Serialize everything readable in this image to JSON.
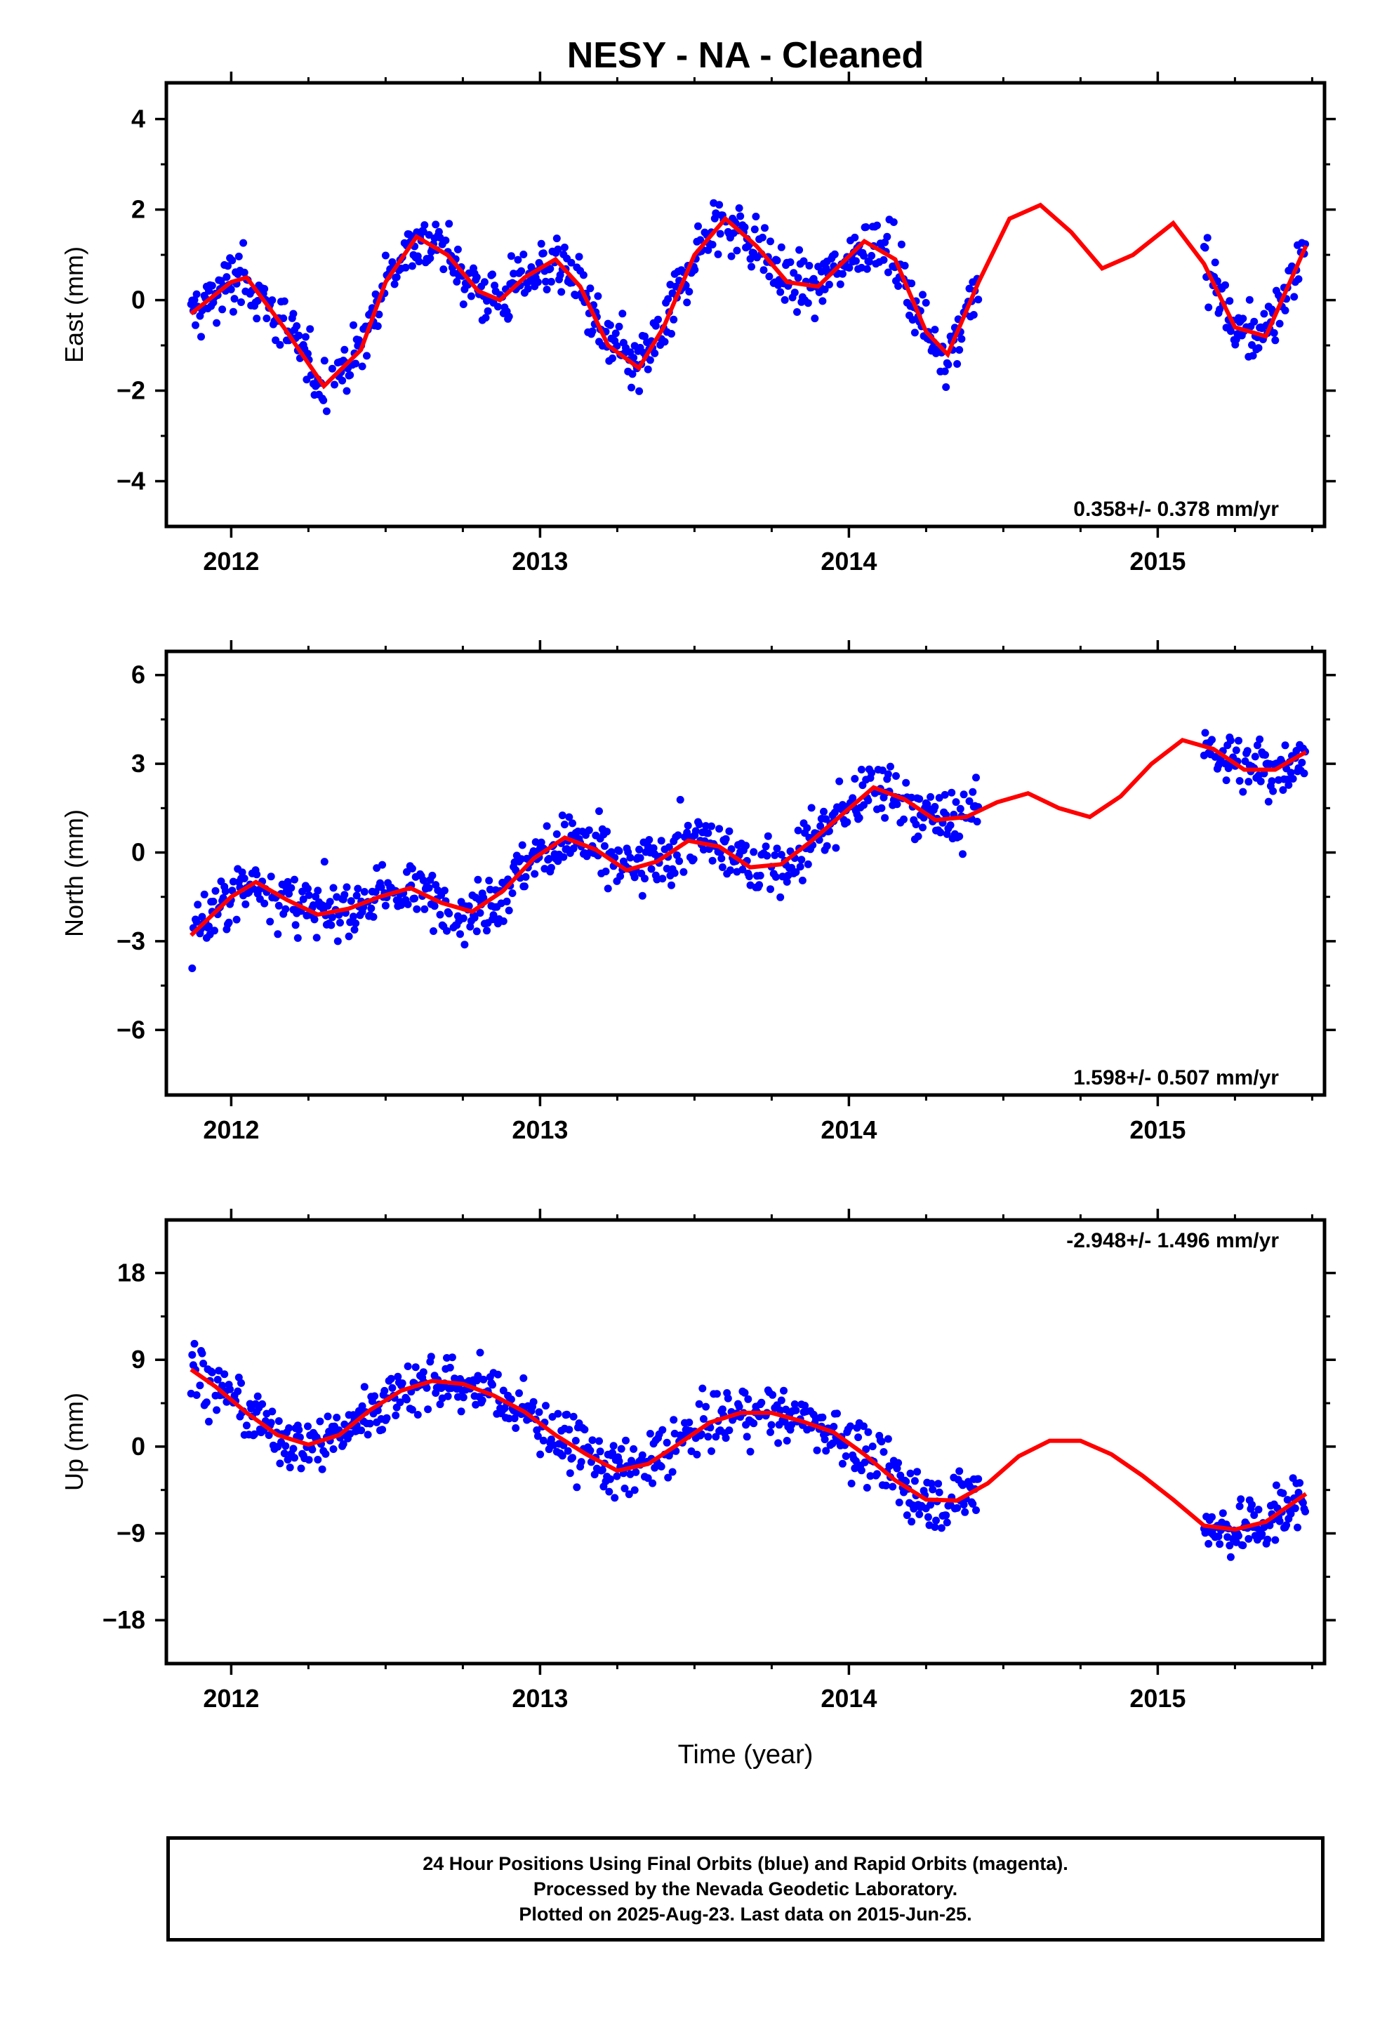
{
  "title": "NESY  - NA - Cleaned",
  "xlabel": "Time (year)",
  "x_tick_labels": [
    "2012",
    "2013",
    "2014",
    "2015"
  ],
  "colors": {
    "final_orbits": "#0000ff",
    "rapid_orbits": "#ff00ff",
    "model_fit": "#ff0000",
    "frame": "#000000"
  },
  "chart_data": [
    {
      "type": "scatter",
      "name": "east",
      "ylabel": "East (mm)",
      "xlim": [
        2011.79,
        2015.54
      ],
      "ylim": [
        -5.0,
        4.8
      ],
      "y_ticks": [
        -4,
        -2,
        0,
        2,
        4
      ],
      "rate_label": "0.358+/- 0.378 mm/yr",
      "segments": [
        [
          2011.87,
          2014.42
        ],
        [
          2015.15,
          2015.48
        ]
      ],
      "fit": {
        "x": [
          2011.87,
          2012.0,
          2012.05,
          2012.17,
          2012.3,
          2012.42,
          2012.5,
          2012.6,
          2012.7,
          2012.8,
          2012.87,
          2012.95,
          2013.05,
          2013.13,
          2013.22,
          2013.32,
          2013.4,
          2013.5,
          2013.6,
          2013.7,
          2013.8,
          2013.9,
          2014.05,
          2014.15,
          2014.25,
          2014.32,
          2014.42,
          2014.52,
          2014.62,
          2014.72,
          2014.82,
          2014.92,
          2015.05,
          2015.15,
          2015.25,
          2015.35,
          2015.48
        ],
        "y": [
          -0.3,
          0.4,
          0.5,
          -0.6,
          -1.9,
          -1.1,
          0.4,
          1.4,
          1.0,
          0.2,
          0.0,
          0.5,
          0.9,
          0.3,
          -1.0,
          -1.5,
          -0.6,
          1.0,
          1.8,
          1.2,
          0.4,
          0.3,
          1.3,
          0.9,
          -0.7,
          -1.2,
          0.4,
          1.8,
          2.1,
          1.5,
          0.7,
          1.0,
          1.7,
          0.8,
          -0.6,
          -0.8,
          1.2
        ]
      }
    },
    {
      "type": "scatter",
      "name": "north",
      "ylabel": "North (mm)",
      "xlim": [
        2011.79,
        2015.54
      ],
      "ylim": [
        -8.2,
        6.8
      ],
      "y_ticks": [
        -6,
        -3,
        0,
        3,
        6
      ],
      "rate_label": "1.598+/- 0.507 mm/yr",
      "segments": [
        [
          2011.87,
          2014.42
        ],
        [
          2015.15,
          2015.48
        ]
      ],
      "fit": {
        "x": [
          2011.87,
          2012.0,
          2012.08,
          2012.18,
          2012.28,
          2012.38,
          2012.48,
          2012.58,
          2012.68,
          2012.78,
          2012.88,
          2012.98,
          2013.08,
          2013.18,
          2013.28,
          2013.38,
          2013.48,
          2013.58,
          2013.68,
          2013.78,
          2013.88,
          2013.98,
          2014.08,
          2014.18,
          2014.28,
          2014.38,
          2014.48,
          2014.58,
          2014.68,
          2014.78,
          2014.88,
          2014.98,
          2015.08,
          2015.18,
          2015.28,
          2015.38,
          2015.48
        ],
        "y": [
          -2.8,
          -1.5,
          -1.0,
          -1.6,
          -2.1,
          -1.9,
          -1.5,
          -1.2,
          -1.7,
          -2.0,
          -1.3,
          -0.2,
          0.5,
          0.1,
          -0.6,
          -0.3,
          0.4,
          0.2,
          -0.5,
          -0.4,
          0.4,
          1.3,
          2.2,
          1.8,
          1.1,
          1.2,
          1.7,
          2.0,
          1.5,
          1.2,
          1.9,
          3.0,
          3.8,
          3.5,
          2.8,
          2.8,
          3.4
        ]
      }
    },
    {
      "type": "scatter",
      "name": "up",
      "ylabel": "Up (mm)",
      "xlim": [
        2011.79,
        2015.54
      ],
      "ylim": [
        -22.5,
        23.5
      ],
      "y_ticks": [
        -18,
        -9,
        0,
        9,
        18
      ],
      "rate_label": "-2.948+/- 1.496 mm/yr",
      "segments": [
        [
          2011.87,
          2014.42
        ],
        [
          2015.15,
          2015.48
        ]
      ],
      "fit": {
        "x": [
          2011.87,
          2011.95,
          2012.05,
          2012.15,
          2012.25,
          2012.35,
          2012.45,
          2012.55,
          2012.65,
          2012.75,
          2012.85,
          2012.95,
          2013.05,
          2013.15,
          2013.25,
          2013.35,
          2013.45,
          2013.55,
          2013.65,
          2013.75,
          2013.85,
          2013.95,
          2014.05,
          2014.15,
          2014.25,
          2014.35,
          2014.45,
          2014.55,
          2014.65,
          2014.75,
          2014.85,
          2014.95,
          2015.05,
          2015.15,
          2015.25,
          2015.35,
          2015.48
        ],
        "y": [
          8.0,
          6.2,
          3.5,
          1.2,
          0.2,
          1.2,
          3.8,
          5.8,
          6.8,
          6.5,
          5.3,
          3.6,
          1.2,
          -0.8,
          -2.5,
          -1.8,
          0.3,
          2.5,
          3.5,
          3.5,
          2.6,
          1.5,
          -0.8,
          -3.5,
          -5.5,
          -5.6,
          -3.8,
          -1.0,
          0.6,
          0.6,
          -0.8,
          -3.0,
          -5.5,
          -8.2,
          -8.6,
          -7.8,
          -4.9
        ]
      }
    }
  ],
  "footer": {
    "line1": "24 Hour Positions Using Final Orbits (blue) and Rapid Orbits (magenta).",
    "line2": "Processed by the Nevada Geodetic Laboratory.",
    "line3": "Plotted on 2025-Aug-23. Last data on 2015-Jun-25."
  }
}
